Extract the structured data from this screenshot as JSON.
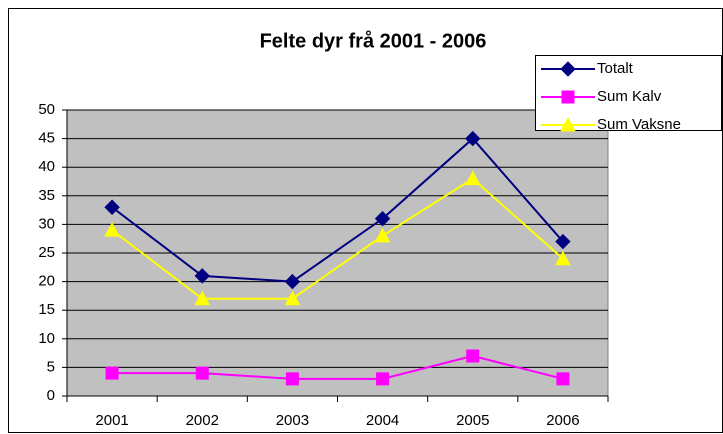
{
  "chart_data": {
    "type": "line",
    "title": "Felte dyr frå 2001 - 2006",
    "categories": [
      "2001",
      "2002",
      "2003",
      "2004",
      "2005",
      "2006"
    ],
    "series": [
      {
        "name": "Totalt",
        "color": "#000080",
        "marker": "diamond",
        "values": [
          33,
          21,
          20,
          31,
          45,
          27
        ]
      },
      {
        "name": "Sum Kalv",
        "color": "#ff00ff",
        "marker": "square",
        "values": [
          4,
          4,
          3,
          3,
          7,
          3
        ]
      },
      {
        "name": "Sum Vaksne",
        "color": "#ffff00",
        "marker": "triangle",
        "values": [
          29,
          17,
          17,
          28,
          38,
          24
        ]
      }
    ],
    "ylim": [
      0,
      50
    ],
    "yticks": [
      0,
      5,
      10,
      15,
      20,
      25,
      30,
      35,
      40,
      45,
      50
    ],
    "grid": true,
    "plot_background": "#c0c0c0",
    "legend": "top-right"
  }
}
